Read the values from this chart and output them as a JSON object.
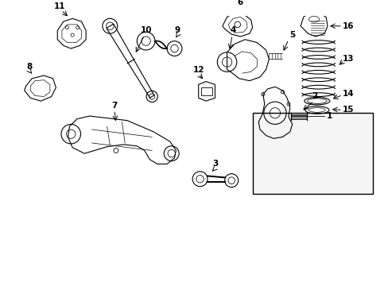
{
  "bg_color": "#ffffff",
  "line_color": "#000000"
}
